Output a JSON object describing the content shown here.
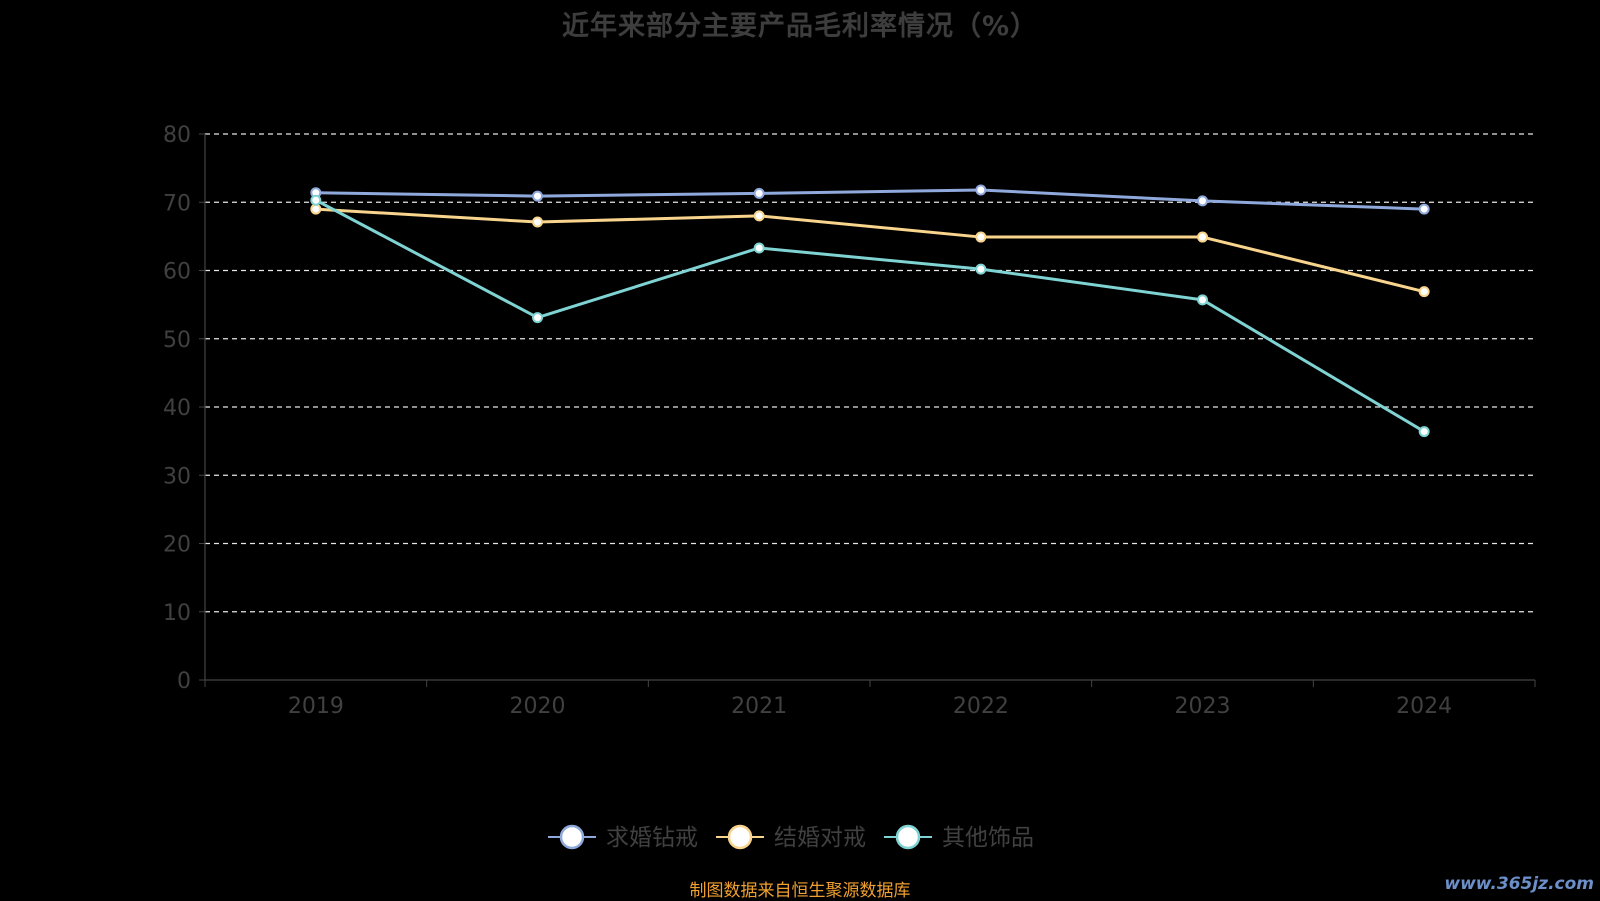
{
  "chart_data": {
    "type": "line",
    "title": "近年来部分主要产品毛利率情况（%）",
    "categories": [
      "2019",
      "2020",
      "2021",
      "2022",
      "2023",
      "2024"
    ],
    "series": [
      {
        "name": "求婚钻戒",
        "color": "#8fa9dc",
        "values": [
          71.4,
          70.9,
          71.3,
          71.8,
          70.2,
          69.0
        ]
      },
      {
        "name": "结婚对戒",
        "color": "#f8d48c",
        "values": [
          69.0,
          67.1,
          68.0,
          64.9,
          64.9,
          56.9
        ]
      },
      {
        "name": "其他饰品",
        "color": "#7fd3d3",
        "values": [
          70.3,
          53.1,
          63.3,
          60.2,
          55.7,
          36.4
        ]
      }
    ],
    "yticks": [
      "0",
      "10",
      "20",
      "30",
      "40",
      "50",
      "60",
      "70",
      "80"
    ],
    "ylim": [
      0,
      80
    ],
    "grid": true,
    "legend_position": "bottom-center"
  },
  "footer": {
    "source": "制图数据来自恒生聚源数据库",
    "watermark": "www.365jz.com"
  }
}
